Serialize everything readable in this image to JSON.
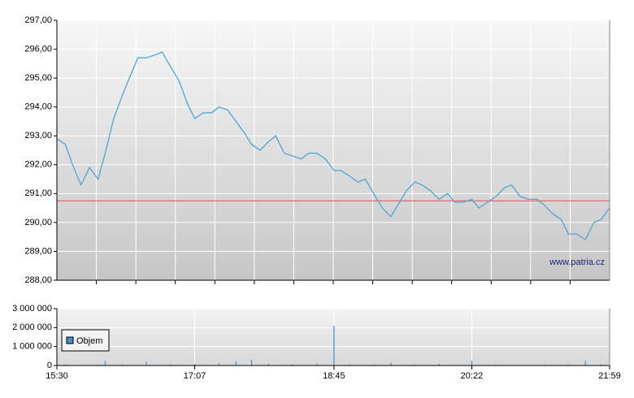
{
  "chart_data": [
    {
      "type": "line",
      "color": "#4ea6d3",
      "reference_line": 290.75,
      "reference_color": "#e05050",
      "watermark": "www.patria.cz",
      "x": [
        "15:30",
        "15:36",
        "15:41",
        "15:47",
        "15:53",
        "15:59",
        "16:04",
        "16:10",
        "16:16",
        "16:21",
        "16:27",
        "16:33",
        "16:39",
        "16:44",
        "16:50",
        "16:56",
        "17:02",
        "17:07",
        "17:13",
        "17:19",
        "17:24",
        "17:30",
        "17:36",
        "17:42",
        "17:47",
        "17:53",
        "17:59",
        "18:04",
        "18:10",
        "18:16",
        "18:22",
        "18:27",
        "18:33",
        "18:39",
        "18:45",
        "18:50",
        "18:56",
        "19:02",
        "19:07",
        "19:13",
        "19:19",
        "19:25",
        "19:30",
        "19:36",
        "19:42",
        "19:47",
        "19:53",
        "19:59",
        "20:05",
        "20:10",
        "20:16",
        "20:22",
        "20:27",
        "20:33",
        "20:39",
        "20:45",
        "20:50",
        "20:56",
        "21:02",
        "21:08",
        "21:13",
        "21:19",
        "21:25",
        "21:30",
        "21:36",
        "21:42",
        "21:48",
        "21:53",
        "21:59"
      ],
      "values": [
        292.9,
        292.7,
        292.0,
        291.3,
        291.9,
        291.5,
        292.4,
        293.6,
        294.4,
        295.0,
        295.7,
        295.7,
        295.8,
        295.9,
        295.4,
        294.9,
        294.1,
        293.6,
        293.8,
        293.8,
        294.0,
        293.9,
        293.5,
        293.1,
        292.7,
        292.5,
        292.8,
        293.0,
        292.4,
        292.3,
        292.2,
        292.4,
        292.4,
        292.2,
        291.8,
        291.8,
        291.6,
        291.4,
        291.5,
        291.0,
        290.5,
        290.2,
        290.6,
        291.1,
        291.4,
        291.3,
        291.1,
        290.8,
        291.0,
        290.7,
        290.7,
        290.8,
        290.5,
        290.7,
        290.9,
        291.2,
        291.3,
        290.9,
        290.8,
        290.8,
        290.6,
        290.3,
        290.1,
        289.6,
        289.6,
        289.4,
        290.0,
        290.1,
        290.5
      ],
      "xlim": [
        "15:30",
        "21:59"
      ],
      "ylim": [
        288,
        297
      ],
      "yticks": [
        {
          "value": 288,
          "label": "288,00"
        },
        {
          "value": 289,
          "label": "289,00"
        },
        {
          "value": 290,
          "label": "290,00"
        },
        {
          "value": 291,
          "label": "291,00"
        },
        {
          "value": 292,
          "label": "292,00"
        },
        {
          "value": 293,
          "label": "293,00"
        },
        {
          "value": 294,
          "label": "294,00"
        },
        {
          "value": 295,
          "label": "295,00"
        },
        {
          "value": 296,
          "label": "296,00"
        },
        {
          "value": 297,
          "label": "297,00"
        }
      ],
      "grid": true
    },
    {
      "type": "bar",
      "x": [
        "15:36",
        "15:47",
        "15:59",
        "16:04",
        "16:16",
        "16:33",
        "16:50",
        "17:07",
        "17:24",
        "17:36",
        "17:47",
        "17:59",
        "18:16",
        "18:33",
        "18:45",
        "18:56",
        "19:13",
        "19:25",
        "19:42",
        "19:59",
        "20:16",
        "20:22",
        "20:39",
        "20:56",
        "21:13",
        "21:30",
        "21:42",
        "21:53"
      ],
      "series": [
        {
          "name": "Objem",
          "color": "#4a8cc4",
          "values": [
            60000,
            40000,
            50000,
            240000,
            60000,
            200000,
            60000,
            80000,
            120000,
            220000,
            300000,
            100000,
            60000,
            100000,
            2100000,
            60000,
            50000,
            150000,
            50000,
            80000,
            40000,
            250000,
            60000,
            40000,
            50000,
            60000,
            250000,
            60000
          ]
        }
      ],
      "xlim": [
        "15:30",
        "21:59"
      ],
      "xticks": [
        "15:30",
        "17:07",
        "18:45",
        "20:22",
        "21:59"
      ],
      "ylim": [
        0,
        3000000
      ],
      "yticks": [
        0,
        {
          "value": 1000000,
          "label": "1 000 000"
        },
        {
          "value": 2000000,
          "label": "2 000 000"
        },
        {
          "value": 3000000,
          "label": "3 000 000"
        }
      ],
      "legend": "upper left",
      "grid": true
    }
  ]
}
